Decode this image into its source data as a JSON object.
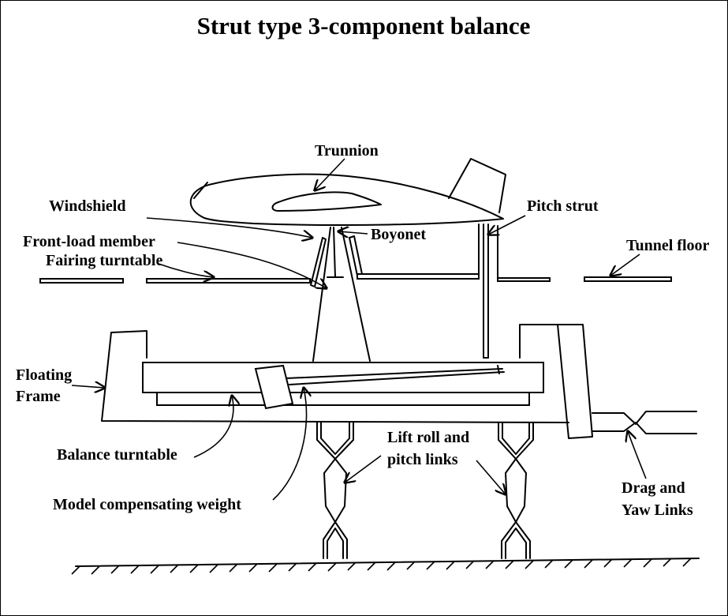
{
  "title": "Strut type 3-component balance",
  "labels": {
    "trunnion": "Trunnion",
    "windshield": "Windshield",
    "front_load_member": "Front-load member",
    "boyonet": "Boyonet",
    "pitch_strut": "Pitch strut",
    "fairing_turntable": "Fairing turntable",
    "tunnel_floor": "Tunnel floor",
    "floating_frame_line1": "Floating",
    "floating_frame_line2": "Frame",
    "balance_turntable": "Balance turntable",
    "lift_links_line1": "Lift roll and",
    "lift_links_line2": "pitch links",
    "model_weight": "Model compensating weight",
    "drag_yaw_line1": "Drag and",
    "drag_yaw_line2": "Yaw Links"
  }
}
